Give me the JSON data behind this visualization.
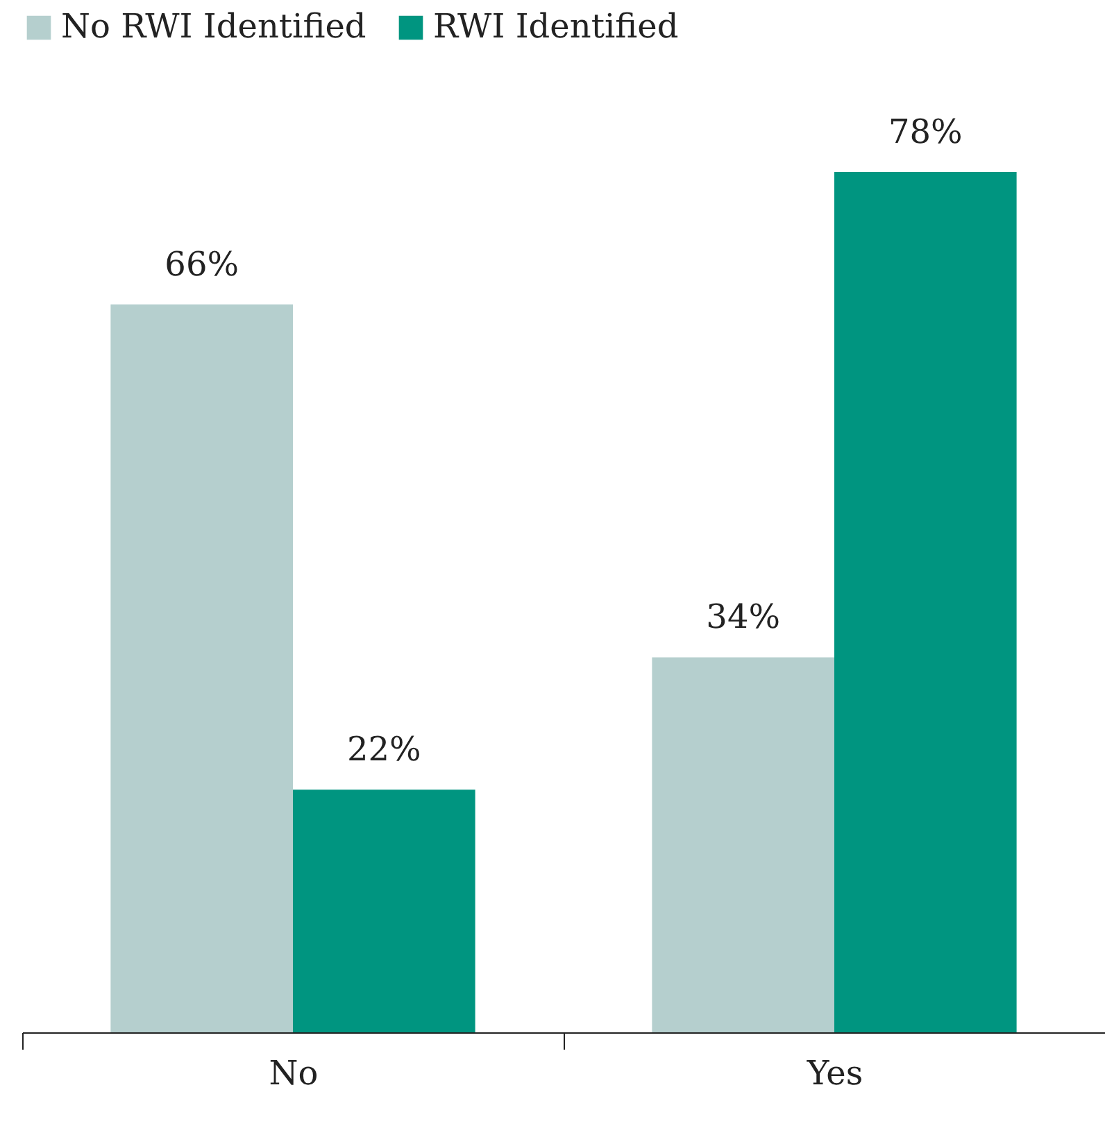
{
  "chart_data": {
    "type": "bar",
    "categories": [
      "No",
      "Yes"
    ],
    "series": [
      {
        "name": "No RWI Identified",
        "color": "#b5cfce",
        "values": [
          66,
          34
        ],
        "value_labels": [
          "66%",
          "34%"
        ]
      },
      {
        "name": "RWI Identified",
        "color": "#009580",
        "values": [
          22,
          78
        ],
        "value_labels": [
          "22%",
          "78%"
        ]
      }
    ],
    "legend": "top",
    "grid": false
  }
}
